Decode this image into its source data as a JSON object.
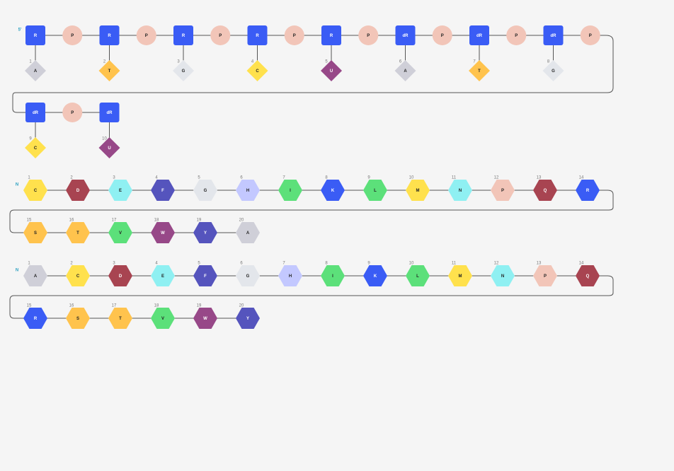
{
  "nucleic": {
    "start_label": "5'",
    "sugars": [
      "R",
      "R",
      "R",
      "R",
      "R",
      "dR",
      "dR",
      "dR",
      "dR",
      "dR"
    ],
    "phosphate_label": "P",
    "bases": [
      {
        "n": "1",
        "code": "A"
      },
      {
        "n": "2",
        "code": "T"
      },
      {
        "n": "3",
        "code": "G"
      },
      {
        "n": "4",
        "code": "C"
      },
      {
        "n": "5",
        "code": "U"
      },
      {
        "n": "6",
        "code": "A"
      },
      {
        "n": "7",
        "code": "T"
      },
      {
        "n": "8",
        "code": "G"
      },
      {
        "n": "9",
        "code": "C"
      },
      {
        "n": "10",
        "code": "U"
      }
    ]
  },
  "peptide1": {
    "start_label": "N",
    "residues": [
      {
        "n": "1",
        "code": "C"
      },
      {
        "n": "2",
        "code": "D"
      },
      {
        "n": "3",
        "code": "E"
      },
      {
        "n": "4",
        "code": "F"
      },
      {
        "n": "5",
        "code": "G"
      },
      {
        "n": "6",
        "code": "H"
      },
      {
        "n": "7",
        "code": "I"
      },
      {
        "n": "8",
        "code": "K"
      },
      {
        "n": "9",
        "code": "L"
      },
      {
        "n": "10",
        "code": "M"
      },
      {
        "n": "11",
        "code": "N"
      },
      {
        "n": "12",
        "code": "P"
      },
      {
        "n": "13",
        "code": "Q"
      },
      {
        "n": "14",
        "code": "R"
      },
      {
        "n": "15",
        "code": "S"
      },
      {
        "n": "16",
        "code": "T"
      },
      {
        "n": "17",
        "code": "V"
      },
      {
        "n": "18",
        "code": "W"
      },
      {
        "n": "19",
        "code": "Y"
      },
      {
        "n": "20",
        "code": "A"
      }
    ]
  },
  "peptide2": {
    "start_label": "N",
    "residues": [
      {
        "n": "1",
        "code": "A"
      },
      {
        "n": "2",
        "code": "C"
      },
      {
        "n": "3",
        "code": "D"
      },
      {
        "n": "4",
        "code": "E"
      },
      {
        "n": "5",
        "code": "F"
      },
      {
        "n": "6",
        "code": "G"
      },
      {
        "n": "7",
        "code": "H"
      },
      {
        "n": "8",
        "code": "I"
      },
      {
        "n": "9",
        "code": "K"
      },
      {
        "n": "10",
        "code": "L"
      },
      {
        "n": "11",
        "code": "M"
      },
      {
        "n": "12",
        "code": "N"
      },
      {
        "n": "13",
        "code": "P"
      },
      {
        "n": "14",
        "code": "Q"
      },
      {
        "n": "15",
        "code": "R"
      },
      {
        "n": "16",
        "code": "S"
      },
      {
        "n": "17",
        "code": "T"
      },
      {
        "n": "18",
        "code": "V"
      },
      {
        "n": "19",
        "code": "W"
      },
      {
        "n": "20",
        "code": "Y"
      }
    ]
  },
  "colors": {
    "sugar": "#3a5cf5",
    "phosphate": "#f2c5b8",
    "connector": "#555555",
    "number": "#777777",
    "start_label": "#2aa0c0",
    "text_dark": "#222222",
    "text_light": "#ffffff",
    "code_colors": {
      "A": "#cfcfd8",
      "C": "#ffe14d",
      "D": "#a84451",
      "E": "#8ff0f2",
      "F": "#5554bd",
      "G": "#e3e6eb",
      "H": "#c3c8ff",
      "I": "#5ce07a",
      "K": "#3a5cf5",
      "L": "#5ce07a",
      "M": "#ffe14d",
      "N": "#8ff0f2",
      "P": "#f2c5b8",
      "Q": "#a84451",
      "R": "#3a5cf5",
      "S": "#ffc34d",
      "T": "#ffc34d",
      "V": "#5ce07a",
      "W": "#974888",
      "Y": "#5554bd",
      "U": "#974888"
    },
    "light_text_codes": [
      "D",
      "F",
      "K",
      "Q",
      "R",
      "U",
      "W",
      "Y"
    ]
  }
}
